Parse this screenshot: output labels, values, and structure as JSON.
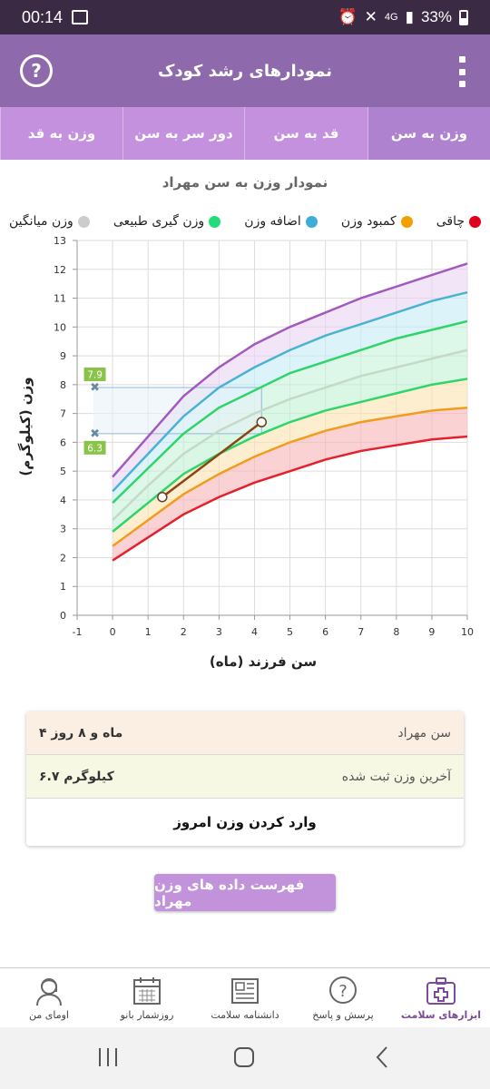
{
  "status": {
    "time": "00:14",
    "battery": "33%",
    "network": "4G"
  },
  "app_bar": {
    "title": "نمودارهای رشد کودک",
    "help_icon": "question-circle-icon",
    "menu_icon": "more-vertical-icon"
  },
  "tabs": [
    {
      "label": "وزن به سن",
      "active": true
    },
    {
      "label": "قد به سن",
      "active": false
    },
    {
      "label": "دور سر به سن",
      "active": false
    },
    {
      "label": "وزن به قد",
      "active": false
    }
  ],
  "chart_data": {
    "type": "line",
    "title": "نمودار وزن به سن مهراد",
    "xlabel": "سن فرزند (ماه)",
    "ylabel": "وزن (کیلوگرم)",
    "xlim": [
      -1,
      10
    ],
    "ylim": [
      0,
      13
    ],
    "x_ticks": [
      -1,
      0,
      1,
      2,
      3,
      4,
      5,
      6,
      7,
      8,
      9,
      10
    ],
    "y_ticks": [
      0,
      1,
      2,
      3,
      4,
      5,
      6,
      7,
      8,
      9,
      10,
      11,
      12,
      13
    ],
    "grid": true,
    "legend": [
      {
        "name": "چاقی",
        "color": "#e0001b"
      },
      {
        "name": "کمبود وزن",
        "color": "#f2a000"
      },
      {
        "name": "اضافه وزن",
        "color": "#3eaed6"
      },
      {
        "name": "وزن گیری طبیعی",
        "color": "#22dd77"
      },
      {
        "name": "وزن میانگین",
        "color": "#cccccc"
      }
    ],
    "x": [
      0,
      1,
      2,
      3,
      4,
      5,
      6,
      7,
      8,
      9,
      10
    ],
    "series": [
      {
        "key": "p3",
        "color": "#e4202c",
        "values": [
          1.9,
          2.7,
          3.5,
          4.1,
          4.6,
          5.0,
          5.4,
          5.7,
          5.9,
          6.1,
          6.2
        ]
      },
      {
        "key": "p15",
        "color": "#f19c1b",
        "values": [
          2.4,
          3.3,
          4.2,
          4.9,
          5.5,
          6.0,
          6.4,
          6.7,
          6.9,
          7.1,
          7.2
        ]
      },
      {
        "key": "p25",
        "color": "#2fd56a",
        "values": [
          2.9,
          3.9,
          4.9,
          5.6,
          6.2,
          6.7,
          7.1,
          7.4,
          7.7,
          8.0,
          8.2
        ]
      },
      {
        "key": "p50",
        "color": "#c5d9c9",
        "values": [
          3.3,
          4.5,
          5.6,
          6.4,
          7.0,
          7.5,
          7.9,
          8.3,
          8.6,
          8.9,
          9.2
        ]
      },
      {
        "key": "p75",
        "color": "#2fd56a",
        "values": [
          3.9,
          5.1,
          6.3,
          7.2,
          7.8,
          8.4,
          8.8,
          9.2,
          9.6,
          9.9,
          10.2
        ]
      },
      {
        "key": "p85",
        "color": "#4ab3d2",
        "values": [
          4.3,
          5.6,
          6.9,
          7.9,
          8.6,
          9.2,
          9.7,
          10.1,
          10.5,
          10.9,
          11.2
        ]
      },
      {
        "key": "p97",
        "color": "#a25bbd",
        "values": [
          4.8,
          6.2,
          7.6,
          8.6,
          9.4,
          10.0,
          10.5,
          11.0,
          11.4,
          11.8,
          12.2
        ]
      }
    ],
    "child_series": {
      "color": "#8b4513",
      "x": [
        1.4,
        4.2
      ],
      "values": [
        4.1,
        6.7
      ]
    },
    "reference_lines": {
      "upper": 7.9,
      "lower": 6.3,
      "x": 4.2
    }
  },
  "info": {
    "age_label": "سن مهراد",
    "age_value": "۴ ماه و ۸ روز",
    "weight_label": "آخرین وزن ثبت شده",
    "weight_value": "۶.۷ کیلوگرم",
    "enter_button": "وارد کردن وزن امروز"
  },
  "list_button": "فهرست داده های وزن مهراد",
  "bottom_nav": [
    {
      "label": "ابزارهای سلامت",
      "icon": "first-aid-kit-icon",
      "active": true
    },
    {
      "label": "پرسش و پاسخ",
      "icon": "question-bubble-icon",
      "active": false
    },
    {
      "label": "دانشنامه سلامت",
      "icon": "newspaper-icon",
      "active": false
    },
    {
      "label": "روزشمار بانو",
      "icon": "calendar-icon",
      "active": false
    },
    {
      "label": "اومای من",
      "icon": "woman-avatar-icon",
      "active": false
    }
  ]
}
